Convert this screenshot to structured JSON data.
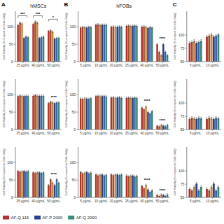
{
  "chart_data": [
    {
      "type": "bar",
      "title": "hMSCs",
      "y_label": "Cell Viability (% respect to Cells Only)",
      "categories": [
        "25 μg/mL",
        "40 μg/mL",
        "50 μg/mL"
      ],
      "series": [
        {
          "name": "AF-Q 115",
          "color": "#b5322a",
          "values": [
            105,
            108,
            88
          ],
          "errors": [
            2.5,
            2.5,
            2.5
          ]
        },
        {
          "color": "#a0522d",
          "values": [
            112,
            115,
            90
          ],
          "errors": [
            2.5,
            2.5,
            2.5
          ]
        },
        {
          "color": "#cc8844",
          "values": [
            110,
            112,
            86
          ],
          "errors": [
            2.5,
            2.5,
            2.5
          ]
        },
        {
          "name": "AF-P 2000",
          "color": "#2b3f8c",
          "values": [
            68,
            68,
            66
          ],
          "errors": [
            2.5,
            2.5,
            2.5
          ]
        },
        {
          "color": "#3a6aaa",
          "values": [
            72,
            70,
            68
          ],
          "errors": [
            2.5,
            2.5,
            2.5
          ]
        },
        {
          "name": "AF-Q 2000",
          "color": "#3a8a78",
          "values": [
            70,
            72,
            68
          ],
          "errors": [
            2.5,
            2.5,
            2.5
          ]
        }
      ],
      "ylim": [
        0,
        145
      ],
      "yticks": [
        0,
        50,
        100
      ],
      "annotations": [
        {
          "text": "A"
        },
        {
          "text": "***",
          "category": "25 μg/mL",
          "y": 132,
          "bracket": true
        },
        {
          "text": "***",
          "category": "40 μg/mL",
          "y": 132,
          "bracket": true
        },
        {
          "text": "*",
          "category": "50 μg/mL",
          "y": 122,
          "bracket": true
        }
      ]
    },
    {
      "type": "bar",
      "y_label": "Cell Viability (% respect to Cells Only)",
      "categories": [
        "25 μg/mL",
        "40 μg/mL",
        "50 μg/mL"
      ],
      "series": [
        {
          "color": "#b5322a",
          "values": [
            96,
            97,
            76
          ],
          "errors": [
            2.5,
            2.5,
            2.5
          ]
        },
        {
          "color": "#a0522d",
          "values": [
            98,
            99,
            80
          ],
          "errors": [
            2.5,
            2.5,
            2.5
          ]
        },
        {
          "color": "#cc8844",
          "values": [
            97,
            97,
            78
          ],
          "errors": [
            2.5,
            2.5,
            2.5
          ]
        },
        {
          "color": "#2b3f8c",
          "values": [
            96,
            97,
            76
          ],
          "errors": [
            2.5,
            2.5,
            2.5
          ]
        },
        {
          "color": "#3a6aaa",
          "values": [
            97,
            97,
            78
          ],
          "errors": [
            2.5,
            2.5,
            2.5
          ]
        },
        {
          "color": "#3a8a78",
          "values": [
            96,
            97,
            78
          ],
          "errors": [
            2.5,
            2.5,
            2.5
          ]
        }
      ],
      "ylim": [
        0,
        145
      ],
      "yticks": [
        0,
        50,
        100
      ],
      "annotations": [
        {
          "text": "****",
          "category": "50 μg/mL",
          "y": 88
        }
      ]
    },
    {
      "type": "bar",
      "y_label": "Cell Viability (% respect to Cells Only)",
      "categories": [
        "25 μg/mL",
        "40 μg/mL",
        "50 μg/mL"
      ],
      "series": [
        {
          "color": "#b5322a",
          "values": [
            76,
            72,
            35
          ],
          "errors": [
            2.5,
            2.5,
            2.5
          ]
        },
        {
          "color": "#a0522d",
          "values": [
            74,
            70,
            52
          ],
          "errors": [
            2.5,
            2.5,
            2.5
          ]
        },
        {
          "color": "#cc8844",
          "values": [
            75,
            72,
            42
          ],
          "errors": [
            2.5,
            2.5,
            2.5
          ]
        },
        {
          "color": "#2b3f8c",
          "values": [
            76,
            72,
            35
          ],
          "errors": [
            2.5,
            2.5,
            2.5
          ]
        },
        {
          "color": "#3a6aaa",
          "values": [
            74,
            70,
            52
          ],
          "errors": [
            2.5,
            2.5,
            2.5
          ]
        },
        {
          "color": "#3a8a78",
          "values": [
            75,
            72,
            42
          ],
          "errors": [
            2.5,
            2.5,
            2.5
          ]
        }
      ],
      "ylim": [
        0,
        145
      ],
      "yticks": [
        0,
        50,
        100
      ],
      "annotations": [
        {
          "text": "****",
          "category": "50 μg/mL",
          "y": 62
        }
      ]
    },
    {
      "type": "bar",
      "title": "hFOBs",
      "y_label": "Cell Viability (% respect to Cells Only)",
      "categories": [
        "5 μg/mL",
        "10 μg/mL",
        "20 μg/mL",
        "25 μg/mL",
        "40 μg/mL",
        "50 μg/mL"
      ],
      "series": [
        {
          "color": "#b5322a",
          "values": [
            98,
            106,
            100,
            103,
            100,
            50
          ],
          "errors": [
            2.5,
            2.5,
            2.5,
            2.5,
            2.5,
            2.5
          ]
        },
        {
          "color": "#a0522d",
          "values": [
            100,
            107,
            101,
            104,
            101,
            28
          ],
          "errors": [
            2.5,
            2.5,
            2.5,
            2.5,
            2.5,
            2.5
          ]
        },
        {
          "color": "#cc8844",
          "values": [
            99,
            105,
            100,
            102,
            100,
            18
          ],
          "errors": [
            2.5,
            2.5,
            2.5,
            2.5,
            2.5,
            2.5
          ]
        },
        {
          "color": "#2b3f8c",
          "values": [
            98,
            106,
            100,
            103,
            97,
            50
          ],
          "errors": [
            2.5,
            2.5,
            2.5,
            2.5,
            2.5,
            2.5
          ]
        },
        {
          "color": "#3a6aaa",
          "values": [
            100,
            106,
            101,
            104,
            99,
            28
          ],
          "errors": [
            2.5,
            2.5,
            2.5,
            2.5,
            2.5,
            2.5
          ]
        },
        {
          "color": "#3a8a78",
          "values": [
            99,
            106,
            100,
            103,
            98,
            18
          ],
          "errors": [
            2.5,
            2.5,
            2.5,
            2.5,
            2.5,
            2.5
          ]
        }
      ],
      "ylim": [
        0,
        145
      ],
      "yticks": [
        0,
        50,
        100
      ],
      "annotations": [
        {
          "text": "B"
        },
        {
          "text": "****",
          "category": "50 μg/mL",
          "y": 62
        }
      ]
    },
    {
      "type": "bar",
      "y_label": "Cell Viability (% respect to Cells Only)",
      "categories": [
        "5 μg/mL",
        "10 μg/mL",
        "20 μg/mL",
        "25 μg/mL",
        "40 μg/mL",
        "50 μg/mL"
      ],
      "series": [
        {
          "color": "#b5322a",
          "values": [
            89,
            96,
            92,
            91,
            63,
            11
          ],
          "errors": [
            2.5,
            2.5,
            2.5,
            2.5,
            2.5,
            2.5
          ]
        },
        {
          "color": "#a0522d",
          "values": [
            88,
            97,
            93,
            92,
            58,
            9
          ],
          "errors": [
            2.5,
            2.5,
            2.5,
            2.5,
            2.5,
            2.5
          ]
        },
        {
          "color": "#cc8844",
          "values": [
            90,
            95,
            91,
            91,
            66,
            13
          ],
          "errors": [
            2.5,
            2.5,
            2.5,
            2.5,
            2.5,
            2.5
          ]
        },
        {
          "color": "#2b3f8c",
          "values": [
            89,
            96,
            92,
            91,
            50,
            11
          ],
          "errors": [
            2.5,
            2.5,
            2.5,
            2.5,
            2.5,
            2.5
          ]
        },
        {
          "color": "#3a6aaa",
          "values": [
            88,
            97,
            93,
            92,
            46,
            9
          ],
          "errors": [
            2.5,
            2.5,
            2.5,
            2.5,
            2.5,
            2.5
          ]
        },
        {
          "color": "#3a8a78",
          "values": [
            90,
            95,
            91,
            91,
            53,
            13
          ],
          "errors": [
            2.5,
            2.5,
            2.5,
            2.5,
            2.5,
            2.5
          ]
        }
      ],
      "ylim": [
        0,
        145
      ],
      "yticks": [
        0,
        50,
        100
      ],
      "annotations": [
        {
          "text": "****",
          "category": "40 μg/mL",
          "y": 78
        },
        {
          "text": "****",
          "category": "50 μg/mL",
          "y": 20
        }
      ]
    },
    {
      "type": "bar",
      "y_label": "Cell Viability (% respect to Cells Only)",
      "categories": [
        "5 μg/mL",
        "10 μg/mL",
        "20 μg/mL",
        "25 μg/mL",
        "40 μg/mL",
        "50 μg/mL"
      ],
      "series": [
        {
          "color": "#b5322a",
          "values": [
            73,
            66,
            66,
            63,
            33,
            7
          ],
          "errors": [
            2.5,
            2.5,
            2.5,
            2.5,
            2.5,
            2.5
          ]
        },
        {
          "color": "#a0522d",
          "values": [
            69,
            63,
            64,
            60,
            26,
            4
          ],
          "errors": [
            2.5,
            2.5,
            2.5,
            2.5,
            2.5,
            2.5
          ]
        },
        {
          "color": "#cc8844",
          "values": [
            71,
            65,
            66,
            62,
            36,
            8
          ],
          "errors": [
            2.5,
            2.5,
            2.5,
            2.5,
            2.5,
            2.5
          ]
        },
        {
          "color": "#2b3f8c",
          "values": [
            73,
            66,
            66,
            63,
            23,
            7
          ],
          "errors": [
            2.5,
            2.5,
            2.5,
            2.5,
            2.5,
            2.5
          ]
        },
        {
          "color": "#3a6aaa",
          "values": [
            69,
            63,
            64,
            60,
            16,
            4
          ],
          "errors": [
            2.5,
            2.5,
            2.5,
            2.5,
            2.5,
            2.5
          ]
        },
        {
          "color": "#3a8a78",
          "values": [
            71,
            65,
            66,
            62,
            20,
            8
          ],
          "errors": [
            2.5,
            2.5,
            2.5,
            2.5,
            2.5,
            2.5
          ]
        }
      ],
      "ylim": [
        0,
        145
      ],
      "yticks": [
        0,
        50,
        100
      ],
      "annotations": [
        {
          "text": "****",
          "category": "40 μg/mL",
          "y": 46
        },
        {
          "text": "****",
          "category": "50 μg/mL",
          "y": 15
        }
      ]
    },
    {
      "type": "bar",
      "y_label": "Cell Viability (% respect to Cells Only)",
      "categories": [
        "5 μg/mL",
        "10 μg/mL"
      ],
      "series": [
        {
          "color": "#b5322a",
          "values": [
            85,
            97
          ],
          "errors": [
            2.5,
            2.5
          ]
        },
        {
          "color": "#a0522d",
          "values": [
            87,
            99
          ],
          "errors": [
            2.5,
            2.5
          ]
        },
        {
          "color": "#cc8844",
          "values": [
            89,
            101
          ],
          "errors": [
            2.5,
            2.5
          ]
        },
        {
          "color": "#2b3f8c",
          "values": [
            85,
            97
          ],
          "errors": [
            2.5,
            2.5
          ]
        },
        {
          "color": "#3a6aaa",
          "values": [
            87,
            99
          ],
          "errors": [
            2.5,
            2.5
          ]
        },
        {
          "color": "#3a8a78",
          "values": [
            89,
            101
          ],
          "errors": [
            2.5,
            2.5
          ]
        }
      ],
      "ylim": [
        50,
        145
      ],
      "yticks": [
        50,
        75,
        100
      ],
      "annotations": [
        {
          "text": "C"
        }
      ]
    },
    {
      "type": "bar",
      "y_label": "Cell Viability (% respect to Cells Only)",
      "categories": [
        "5 μg/mL",
        "10 μg/mL"
      ],
      "series": [
        {
          "color": "#b5322a",
          "values": [
            70,
            70
          ],
          "errors": [
            2.5,
            2.5
          ]
        },
        {
          "color": "#a0522d",
          "values": [
            72,
            72
          ],
          "errors": [
            2.5,
            2.5
          ]
        },
        {
          "color": "#cc8844",
          "values": [
            71,
            71
          ],
          "errors": [
            2.5,
            2.5
          ]
        },
        {
          "color": "#2b3f8c",
          "values": [
            70,
            70
          ],
          "errors": [
            2.5,
            2.5
          ]
        },
        {
          "color": "#3a6aaa",
          "values": [
            72,
            72
          ],
          "errors": [
            2.5,
            2.5
          ]
        },
        {
          "color": "#3a8a78",
          "values": [
            71,
            71
          ],
          "errors": [
            2.5,
            2.5
          ]
        }
      ],
      "ylim": [
        50,
        145
      ],
      "yticks": [
        50,
        75,
        100
      ]
    },
    {
      "type": "bar",
      "y_label": "Cell Viability (% respect to Cells Only)",
      "categories": [
        "5 μg/mL",
        "10 μg/mL"
      ],
      "series": [
        {
          "color": "#b5322a",
          "values": [
            66,
            66
          ],
          "errors": [
            2.5,
            2.5
          ]
        },
        {
          "color": "#a0522d",
          "values": [
            63,
            63
          ],
          "errors": [
            2.5,
            2.5
          ]
        },
        {
          "color": "#cc8844",
          "values": [
            70,
            70
          ],
          "errors": [
            2.5,
            2.5
          ]
        },
        {
          "color": "#2b3f8c",
          "values": [
            76,
            76
          ],
          "errors": [
            2.5,
            2.5
          ]
        },
        {
          "color": "#3a6aaa",
          "values": [
            63,
            63
          ],
          "errors": [
            2.5,
            2.5
          ]
        },
        {
          "color": "#3a8a78",
          "values": [
            70,
            70
          ],
          "errors": [
            2.5,
            2.5
          ]
        }
      ],
      "ylim": [
        50,
        145
      ],
      "yticks": [
        50,
        75,
        100
      ]
    }
  ]
}
